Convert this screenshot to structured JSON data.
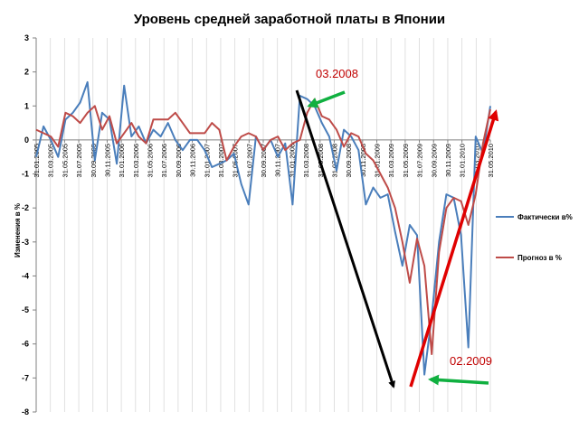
{
  "chart_data": {
    "type": "line",
    "title": "Уровень  средней заработной платы в Японии",
    "ylabel": "Изменения в %",
    "ylim": [
      -8,
      3
    ],
    "yticks": [
      3,
      2,
      1,
      0,
      -1,
      -2,
      -3,
      -4,
      -5,
      -6,
      -7,
      -8
    ],
    "x_tick_labels": [
      "31.01.2005",
      "31.03.2005",
      "31.05.2005",
      "31.07.2005",
      "30.09.2005",
      "30.11.2005",
      "31.01.2006",
      "31.03.2006",
      "31.05.2006",
      "31.07.2006",
      "30.09.2006",
      "30.11.2006",
      "31.01.2007",
      "31.03.2007",
      "31.05.2007",
      "31.07.2007",
      "30.09.2007",
      "30.11.2007",
      "31.01.2008",
      "31.03.2008",
      "31.05.2008",
      "31.07.2008",
      "30.09.2008",
      "30.11.2008",
      "31.01.2009",
      "31.03.2009",
      "31.05.2009",
      "31.07.2009",
      "30.09.2009",
      "30.11.2009",
      "31.01.2010",
      "31.03.2010",
      "31.05.2010"
    ],
    "series": [
      {
        "name": "Фактически в%",
        "color": "#4a7ebb",
        "values": [
          -0.5,
          0.4,
          0.0,
          -0.5,
          0.6,
          0.8,
          1.1,
          1.7,
          -0.6,
          0.8,
          0.6,
          -0.7,
          1.6,
          0.1,
          0.4,
          -0.1,
          0.3,
          0.1,
          0.5,
          0.0,
          -0.3,
          0.0,
          0.0,
          -0.3,
          -0.8,
          -0.7,
          -0.6,
          -0.4,
          -1.3,
          -1.9,
          0.1,
          -0.3,
          0.0,
          -0.5,
          -0.1,
          -1.9,
          1.3,
          1.2,
          1.0,
          0.5,
          0.1,
          -0.9,
          0.3,
          0.1,
          -0.3,
          -1.9,
          -1.4,
          -1.7,
          -1.6,
          -2.7,
          -3.7,
          -2.5,
          -2.8,
          -6.9,
          -5.2,
          -3.0,
          -1.6,
          -1.7,
          -2.8,
          -6.1,
          0.1,
          -0.4,
          1.0
        ]
      },
      {
        "name": "Прогноз в %",
        "color": "#be4b48",
        "values": [
          0.3,
          0.2,
          0.1,
          -0.2,
          0.8,
          0.7,
          0.5,
          0.8,
          1.0,
          0.3,
          0.7,
          -0.1,
          0.2,
          0.5,
          0.1,
          -0.1,
          0.6,
          0.6,
          0.6,
          0.8,
          0.5,
          0.2,
          0.2,
          0.2,
          0.5,
          0.3,
          -0.6,
          -0.2,
          0.1,
          0.2,
          0.1,
          -0.3,
          0.0,
          0.1,
          -0.3,
          -0.1,
          0.0,
          0.8,
          1.2,
          0.7,
          0.6,
          0.3,
          -0.2,
          0.2,
          0.1,
          -0.4,
          -0.6,
          -1.0,
          -1.4,
          -2.0,
          -3.0,
          -4.2,
          -2.9,
          -3.7,
          -6.3,
          -3.3,
          -2.0,
          -1.7,
          -1.8,
          -2.5,
          -1.6,
          -0.1,
          0.9
        ]
      }
    ],
    "legend_position": "right",
    "grid": "vertical",
    "annotations": [
      {
        "text": "03.2008",
        "color": "#c00000"
      },
      {
        "text": "02.2009",
        "color": "#c00000"
      }
    ]
  }
}
